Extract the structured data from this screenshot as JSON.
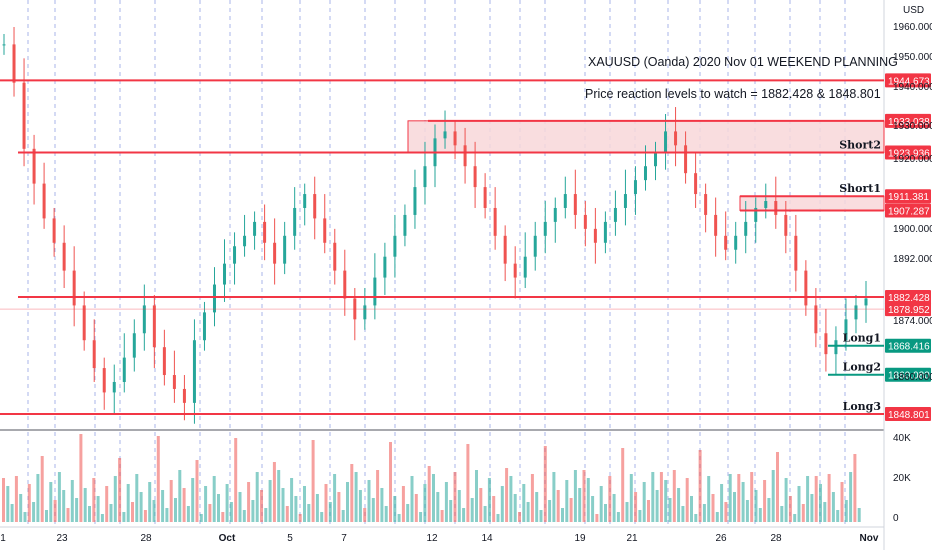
{
  "chart_data": {
    "type": "candlestick",
    "symbol_note": "XAUUSD (Oanda) 2020 Nov 01 WEEKEND PLANNING",
    "subtitle": "Price reaction levels to watch = 1882.428 & 1848.801",
    "currency_label": "USD",
    "y_ticks": [
      "1960.000",
      "1950.000",
      "1940.000",
      "1930.000",
      "1920.000",
      "1900.000",
      "1892.000",
      "1874.000",
      "1860.000"
    ],
    "x_ticks": [
      "1",
      "23",
      "28",
      "Oct",
      "5",
      "7",
      "12",
      "14",
      "19",
      "21",
      "26",
      "28",
      "Nov"
    ],
    "volume_ticks": [
      "40K",
      "20K",
      "0"
    ],
    "levels": [
      {
        "price": 1944.673,
        "label": "1944.673",
        "name": "",
        "color": "#f23645"
      },
      {
        "price": 1933.038,
        "label": "1933.038",
        "name": "",
        "color": "#f23645"
      },
      {
        "price": 1923.936,
        "label": "1923.936",
        "name": "Short2",
        "color": "#f23645"
      },
      {
        "price": 1911.381,
        "label": "1911.381",
        "name": "Short1",
        "color": "#f23645"
      },
      {
        "price": 1907.287,
        "label": "1907.287",
        "name": "",
        "color": "#f23645"
      },
      {
        "price": 1882.428,
        "label": "1882.428",
        "name": "",
        "color": "#f23645"
      },
      {
        "price": 1878.952,
        "label": "1878.952",
        "name": "",
        "color": "#f23645"
      },
      {
        "price": 1868.416,
        "label": "1868.416",
        "name": "Long1",
        "color": "#089981"
      },
      {
        "price": 1860.08,
        "label": "1860.080",
        "name": "Long2",
        "color": "#089981"
      },
      {
        "price": 1848.801,
        "label": "1848.801",
        "name": "Long3",
        "color": "#f23645"
      }
    ],
    "zones": [
      {
        "from": 1923.936,
        "to": 1933.038,
        "name": "Short2"
      },
      {
        "from": 1907.287,
        "to": 1911.381,
        "name": "Short1"
      }
    ],
    "grid": true,
    "colors": {
      "up": "#26a69a",
      "down": "#ef5350",
      "level": "#f23645",
      "long": "#089981",
      "zone_fill": "#f8d7d9"
    }
  }
}
